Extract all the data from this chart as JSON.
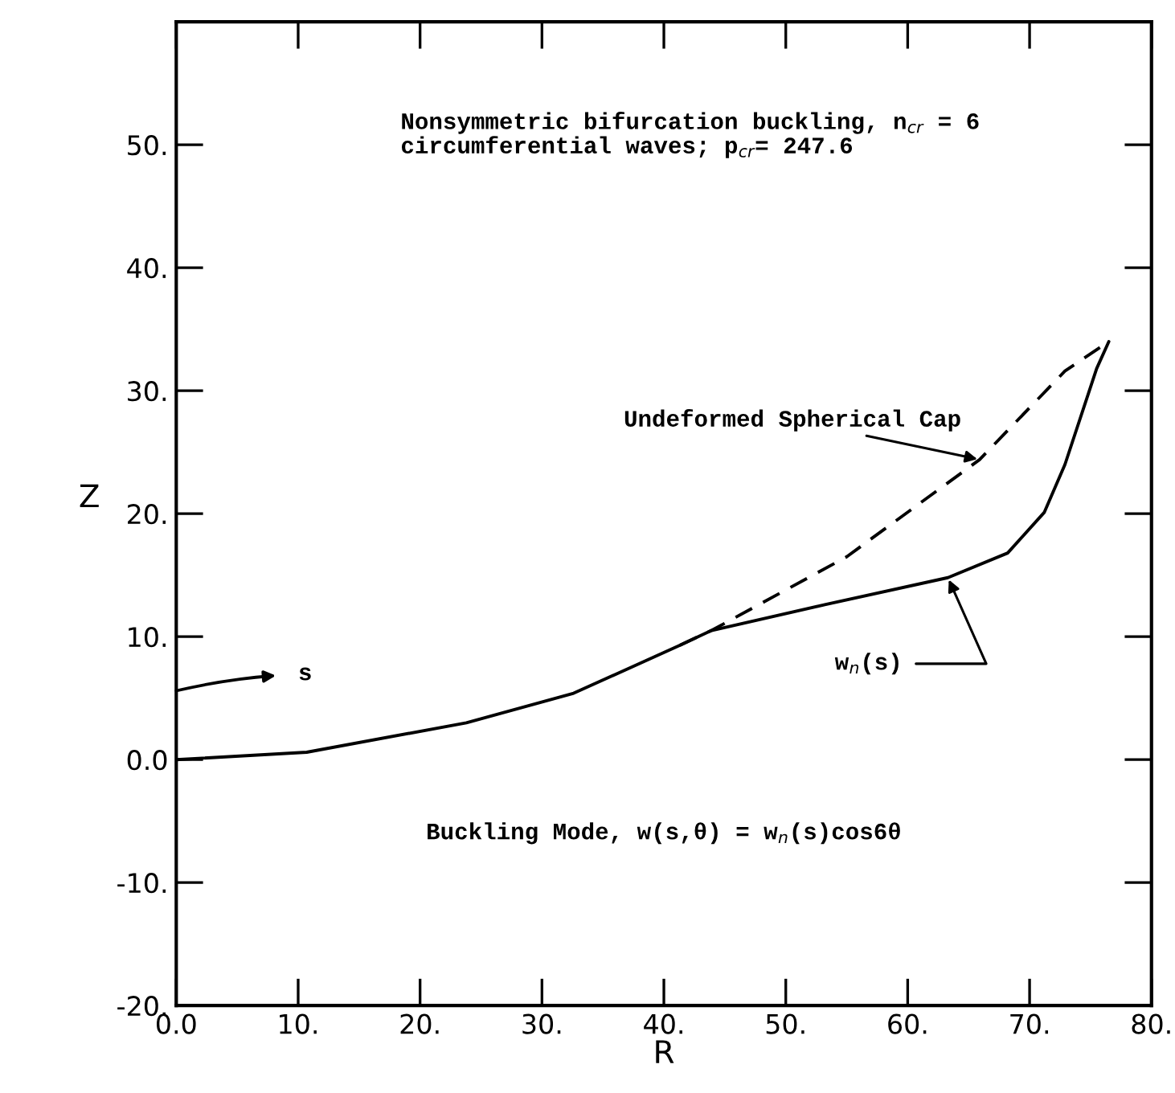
{
  "chart_data": {
    "type": "line",
    "xlabel": "R",
    "ylabel": "Z",
    "xlim": [
      0,
      80
    ],
    "ylim": [
      -20,
      60
    ],
    "xticks": [
      {
        "value": 0,
        "label": "0.0"
      },
      {
        "value": 10,
        "label": "10."
      },
      {
        "value": 20,
        "label": "20."
      },
      {
        "value": 30,
        "label": "30."
      },
      {
        "value": 40,
        "label": "40."
      },
      {
        "value": 50,
        "label": "50."
      },
      {
        "value": 60,
        "label": "60."
      },
      {
        "value": 70,
        "label": "70."
      },
      {
        "value": 80,
        "label": "80."
      }
    ],
    "yticks": [
      {
        "value": -20,
        "label": "-20."
      },
      {
        "value": -10,
        "label": "-10."
      },
      {
        "value": 0,
        "label": "0.0"
      },
      {
        "value": 10,
        "label": "10."
      },
      {
        "value": 20,
        "label": "20."
      },
      {
        "value": 30,
        "label": "30."
      },
      {
        "value": 40,
        "label": "40."
      },
      {
        "value": 50,
        "label": "50."
      },
      {
        "value": 60,
        "label": null
      }
    ],
    "grid": false,
    "legend": false,
    "marker": "none",
    "series": [
      {
        "color": "#000000",
        "line_style": "solid",
        "x": [
          0,
          10.7,
          23.8,
          32.6,
          41.3,
          43.9,
          53.2,
          63.3,
          68.2,
          71.2,
          72.9,
          75.5,
          76.5
        ],
        "values": [
          0,
          0.6,
          3.0,
          5.4,
          9.3,
          10.5,
          12.6,
          14.8,
          16.8,
          20.1,
          24.0,
          31.8,
          34.0
        ]
      },
      {
        "color": "#000000",
        "line_style": "dashed",
        "x": [
          41.3,
          43.9,
          55.0,
          65.9,
          72.9,
          76.5
        ],
        "values": [
          9.3,
          10.5,
          16.5,
          24.4,
          31.6,
          34.0
        ]
      }
    ],
    "annotations": [
      "Nonsymmetric bifurcation buckling, n$_{cr}$ = 6\ncircumferential waves; p$_{cr}$= 247.6",
      {
        "text": "Undeformed Spherical Cap",
        "x": 65.9,
        "y": 24.4
      },
      {
        "text": "w$_{n}$(s)",
        "x": 63.3,
        "y": 14.8
      },
      "s",
      "Buckling Mode, w(s,θ) = w$_{n}$(s)cos6θ"
    ]
  }
}
